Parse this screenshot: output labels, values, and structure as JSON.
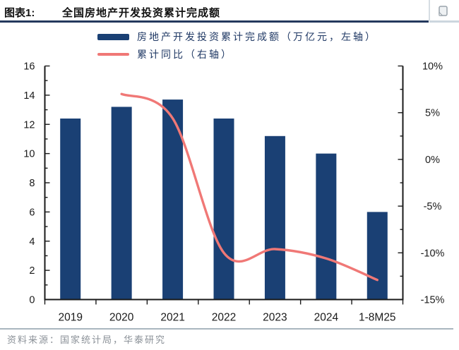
{
  "header": {
    "figure_label": "图表1:",
    "title": "全国房地产开发投资累计完成额",
    "icon": "copy-note-icon"
  },
  "legend": {
    "bar_label": "房地产开发投资累计完成额（万亿元，左轴）",
    "line_label": "累计同比（右轴）"
  },
  "footer": {
    "source": "资料来源：国家统计局，华泰研究"
  },
  "colors": {
    "bar": "#1a4074",
    "line": "#f07876",
    "axis": "#1a1a1a",
    "title_rule": "#24395d",
    "footer_rule": "#a9b6bf",
    "source_text": "#8b9198",
    "icon_stroke": "#9aa4ac"
  },
  "chart_data": {
    "type": "bar+line",
    "title": "全国房地产开发投资累计完成额",
    "categories": [
      "2019",
      "2020",
      "2021",
      "2022",
      "2023",
      "2024",
      "1-8M25"
    ],
    "series": [
      {
        "name": "房地产开发投资累计完成额（万亿元，左轴）",
        "type": "bar",
        "axis": "left",
        "values": [
          12.4,
          13.2,
          13.7,
          12.4,
          11.2,
          10.0,
          6.0
        ]
      },
      {
        "name": "累计同比（右轴）",
        "type": "line",
        "axis": "right",
        "values": [
          null,
          7.0,
          4.4,
          -10.0,
          -9.6,
          -10.6,
          -12.9
        ]
      }
    ],
    "left_axis": {
      "min": 0,
      "max": 16,
      "tick_step": 5,
      "major_step": 2,
      "minor_step": 1,
      "ticks": [
        0,
        2,
        4,
        6,
        8,
        10,
        12,
        14,
        16
      ]
    },
    "right_axis": {
      "min": -15,
      "max": 10,
      "major_step": 5,
      "minor_step": 2.5,
      "ticks": [
        "-15%",
        "-10%",
        "-5%",
        "0%",
        "5%",
        "10%"
      ],
      "suffix": "%"
    },
    "xlabel": "",
    "ylabel": "",
    "grid": false,
    "legend_position": "top"
  }
}
